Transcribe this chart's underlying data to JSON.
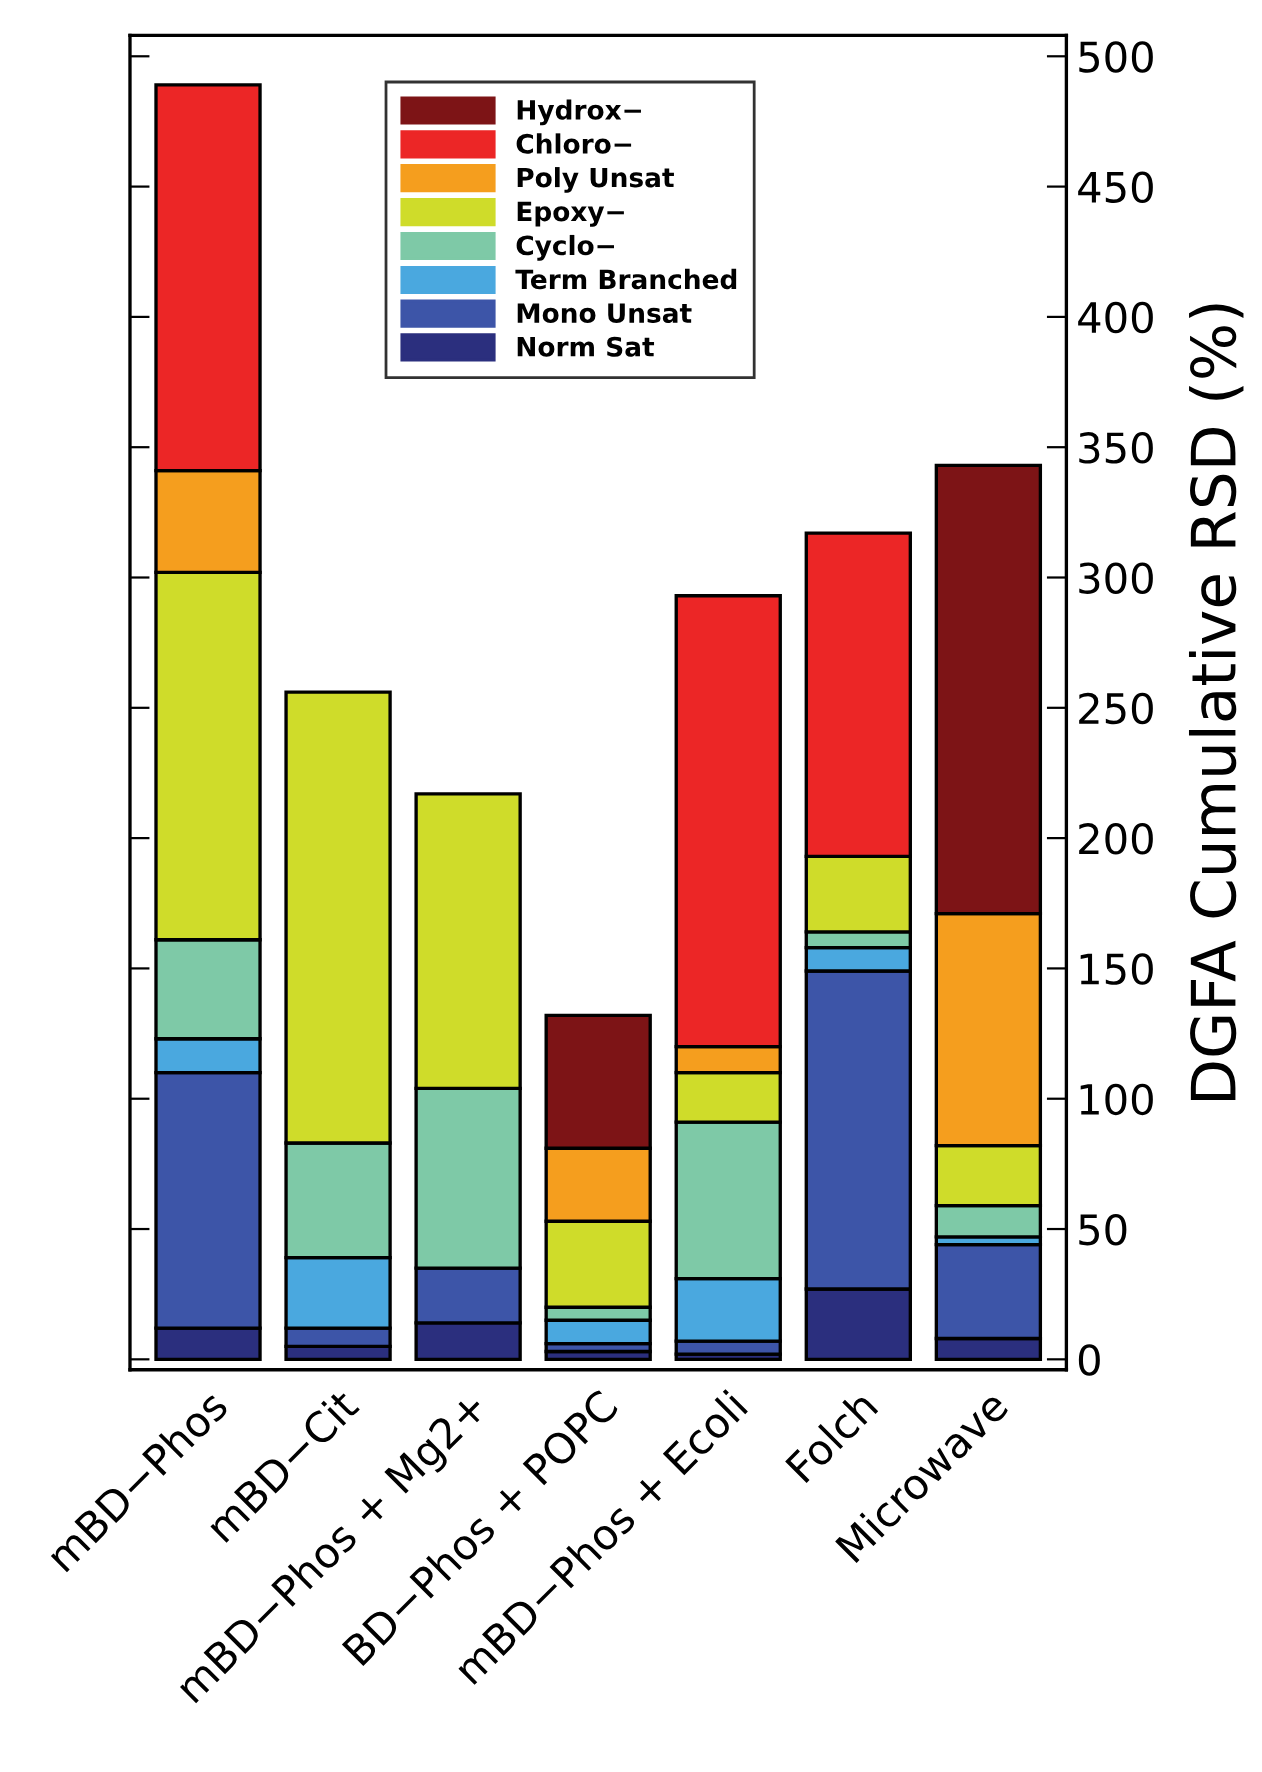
{
  "chart_data": {
    "type": "bar",
    "stacked": true,
    "ylabel": "DGFA Cumulative RSD (%)",
    "categories": [
      "mBD−Phos",
      "mBD−Cit",
      "mBD−Phos + Mg2+",
      "BD−Phos + POPC",
      "mBD−Phos + Ecoli",
      "Folch",
      "Microwave"
    ],
    "series": [
      {
        "name": "Norm Sat",
        "color": "#2b2f7e",
        "values": [
          12,
          5,
          14,
          3,
          2,
          27,
          8
        ]
      },
      {
        "name": "Mono Unsat",
        "color": "#3d55a8",
        "values": [
          98,
          7,
          21,
          3,
          5,
          122,
          36
        ]
      },
      {
        "name": "Term Branched",
        "color": "#4aa8df",
        "values": [
          13,
          27,
          null,
          9,
          24,
          9,
          3
        ]
      },
      {
        "name": "Cyclo−",
        "color": "#7ec9a7",
        "values": [
          38,
          44,
          69,
          5,
          60,
          6,
          12
        ]
      },
      {
        "name": "Epoxy−",
        "color": "#cfdc2a",
        "values": [
          141,
          173,
          113,
          33,
          19,
          29,
          23
        ]
      },
      {
        "name": "Poly Unsat",
        "color": "#f59e1e",
        "values": [
          39,
          null,
          null,
          28,
          10,
          null,
          89
        ]
      },
      {
        "name": "Chloro−",
        "color": "#ec2626",
        "values": [
          148,
          null,
          null,
          null,
          173,
          124,
          null
        ]
      },
      {
        "name": "Hydrox−",
        "color": "#7d1416",
        "values": [
          null,
          null,
          null,
          51,
          null,
          null,
          172
        ]
      }
    ],
    "ylim": [
      -4,
      508
    ],
    "yticks": [
      0,
      50,
      100,
      150,
      200,
      250,
      300,
      350,
      400,
      450,
      500
    ],
    "legend": "top",
    "grid": false
  }
}
